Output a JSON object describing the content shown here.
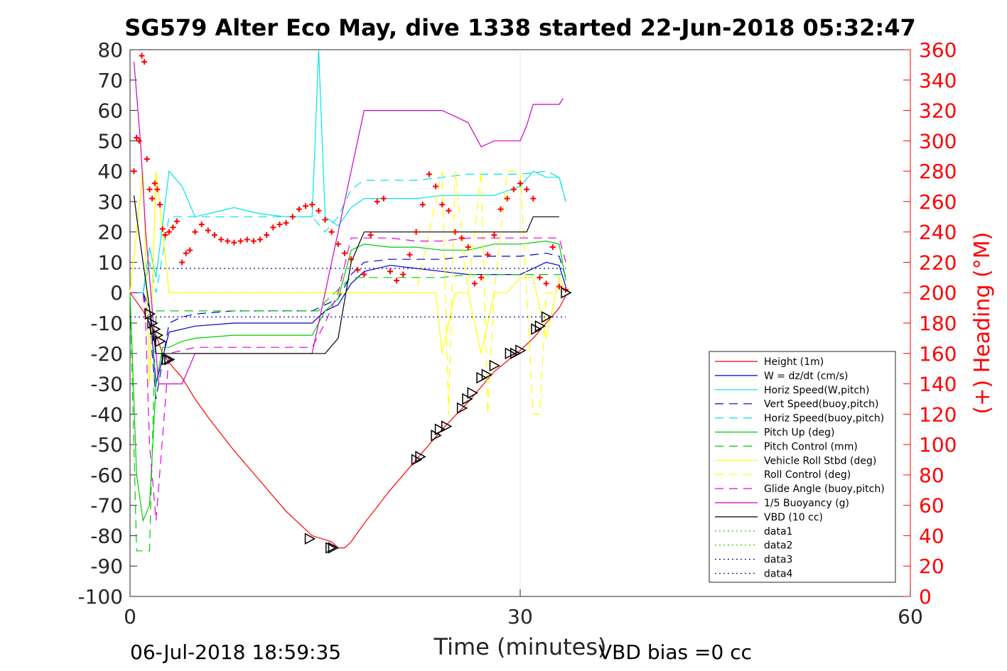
{
  "chart_data": {
    "type": "line",
    "title": "SG579 Alter Eco May, dive 1338 started 22-Jun-2018 05:32:47",
    "xlabel": "Time (minutes)",
    "ylabel": "",
    "y2label": "(+) Heading (°M)",
    "xlim": [
      0,
      60
    ],
    "ylim": [
      -100,
      80
    ],
    "y2lim": [
      0,
      360
    ],
    "xticks": [
      0,
      30,
      60
    ],
    "yticks": [
      80,
      70,
      60,
      50,
      40,
      30,
      20,
      10,
      0,
      -10,
      -20,
      -30,
      -40,
      -50,
      -60,
      -70,
      -80,
      -90,
      -100
    ],
    "y2ticks": [
      360,
      340,
      320,
      300,
      280,
      260,
      240,
      220,
      200,
      180,
      160,
      140,
      120,
      100,
      80,
      60,
      40,
      20,
      0
    ],
    "grid": "vertical at 30",
    "legend_position": "right-inside",
    "footer_left": "06-Jul-2018 18:59:35",
    "footer_right": "VBD bias =0 cc",
    "colors": {
      "height": "#ff0000",
      "w": "#0000cc",
      "horiz": "#00e5e5",
      "pitch": "#00cc00",
      "roll": "#ffff00",
      "glide": "#e000e0",
      "buoy": "#cc00cc",
      "vbd": "#000000",
      "heading": "#ff0000",
      "axis": "#262626",
      "axis_right": "#ff0000"
    },
    "series": [
      {
        "name": "Height (1m)",
        "color": "#ff0000",
        "dash": "solid",
        "x": [
          0,
          1,
          2,
          2.5,
          3,
          4,
          5,
          6,
          8,
          10,
          12,
          14,
          15.5,
          16,
          16.5,
          17,
          18,
          20,
          22,
          24,
          26,
          28,
          30,
          31,
          32,
          33,
          33.5
        ],
        "y": [
          0,
          -6,
          -14,
          -20,
          -23,
          -28,
          -35,
          -41,
          -52,
          -62,
          -72,
          -80,
          -82,
          -84,
          -84,
          -82,
          -76,
          -65,
          -55,
          -45,
          -36,
          -26,
          -19,
          -15,
          -10,
          -5,
          -1
        ]
      },
      {
        "name": "W = dz/dt (cm/s)",
        "color": "#0000cc",
        "dash": "solid",
        "x": [
          0,
          1,
          1.5,
          2,
          3,
          4,
          5,
          8,
          10,
          12,
          14,
          15,
          16,
          17,
          18,
          20,
          22,
          24,
          26,
          28,
          30,
          31,
          32,
          33,
          33.5
        ],
        "y": [
          0,
          0,
          -5,
          -30,
          -13,
          -12,
          -11,
          -10,
          -10,
          -10,
          -10,
          -6,
          -4,
          3,
          7,
          9,
          8,
          7,
          6,
          6,
          6,
          8,
          10,
          9,
          2
        ]
      },
      {
        "name": "Horiz Speed(W,pitch)",
        "color": "#00e5e5",
        "dash": "solid",
        "x": [
          0,
          1,
          1.5,
          2,
          3,
          4,
          5,
          8,
          10,
          12,
          14,
          14.5,
          15,
          16,
          17,
          18,
          20,
          22,
          24,
          26,
          28,
          30,
          31,
          32,
          33,
          33.5
        ],
        "y": [
          0,
          0,
          15,
          5,
          40,
          35,
          25,
          28,
          26,
          25,
          25,
          80,
          25,
          22,
          28,
          31,
          31,
          31,
          32,
          32,
          32,
          35,
          40,
          38,
          38,
          30
        ]
      },
      {
        "name": "Vert Speed(buoy,pitch)",
        "color": "#0000cc",
        "dash": "dash",
        "x": [
          0,
          1,
          1.5,
          2,
          3,
          4,
          5,
          8,
          10,
          12,
          14,
          15,
          16,
          17,
          18,
          20,
          22,
          24,
          26,
          28,
          30,
          32,
          33,
          33.5
        ],
        "y": [
          0,
          0,
          -10,
          -35,
          -10,
          -8,
          -7,
          -6,
          -6,
          -6,
          -6,
          -4,
          -2,
          6,
          10,
          11,
          11,
          11,
          12,
          12,
          12,
          13,
          12,
          5
        ]
      },
      {
        "name": "Horiz Speed(buoy,pitch)",
        "color": "#00e5e5",
        "dash": "dash",
        "x": [
          0,
          1,
          1.5,
          2,
          3,
          4,
          5,
          8,
          10,
          12,
          14,
          15,
          16,
          17,
          18,
          20,
          22,
          24,
          26,
          28,
          30,
          32,
          33,
          33.5
        ],
        "y": [
          0,
          0,
          10,
          0,
          25,
          25,
          25,
          25,
          25,
          25,
          25,
          20,
          25,
          34,
          37,
          37,
          37,
          38,
          39,
          39,
          39,
          40,
          38,
          30
        ]
      },
      {
        "name": "Pitch Up (deg)",
        "color": "#00cc00",
        "dash": "solid",
        "x": [
          0,
          0.5,
          1,
          1.5,
          2,
          2.5,
          3,
          4,
          5,
          8,
          10,
          12,
          14,
          15,
          16,
          17,
          18,
          20,
          22,
          24,
          26,
          28,
          30,
          32,
          33,
          33.5
        ],
        "y": [
          0,
          -60,
          -75,
          -70,
          -30,
          -18,
          -18,
          -16,
          -15,
          -14,
          -14,
          -14,
          -14,
          -6,
          -2,
          14,
          16,
          15,
          15,
          14,
          14,
          16,
          16,
          17,
          16,
          4
        ]
      },
      {
        "name": "Pitch Control (mm)",
        "color": "#00cc00",
        "dash": "dash",
        "x": [
          0,
          0.5,
          1,
          1.5,
          2,
          3,
          4,
          8,
          12,
          14.5,
          15,
          16,
          17,
          18,
          20,
          22,
          24,
          26,
          28,
          30,
          32,
          33,
          33.5
        ],
        "y": [
          0,
          -85,
          -85,
          -85,
          -6,
          -6,
          -6,
          -6,
          -6,
          -6,
          -3,
          1,
          5,
          5,
          5,
          5,
          5,
          6,
          6,
          6,
          6,
          6,
          6
        ]
      },
      {
        "name": "Vehicle Roll Stbd (deg)",
        "color": "#ffff00",
        "dash": "solid",
        "x": [
          0,
          0.5,
          1,
          1.5,
          2,
          2.5,
          3,
          4,
          8,
          12,
          14,
          15,
          16,
          17,
          18,
          20,
          22,
          23.5,
          24,
          25,
          26,
          27,
          28,
          29,
          30,
          31,
          32,
          33,
          33.5
        ],
        "y": [
          0,
          20,
          40,
          -30,
          40,
          20,
          0,
          0,
          0,
          0,
          0,
          0,
          0,
          0,
          0,
          0,
          0,
          0,
          -20,
          0,
          0,
          -20,
          0,
          0,
          5,
          5,
          -15,
          5,
          0
        ]
      },
      {
        "name": "Roll Control (deg)",
        "color": "#ffff00",
        "dash": "dash",
        "x": [
          0,
          1,
          1.5,
          2,
          3,
          4,
          8,
          12,
          16,
          20,
          22,
          24,
          24.5,
          25,
          26,
          27,
          27.5,
          28,
          29,
          30,
          31,
          31.5,
          32,
          33
        ],
        "y": [
          0,
          40,
          -30,
          40,
          0,
          0,
          0,
          0,
          0,
          0,
          0,
          40,
          -40,
          40,
          0,
          40,
          -40,
          0,
          40,
          40,
          -40,
          -40,
          0,
          0
        ]
      },
      {
        "name": "Glide Angle (buoy,pitch)",
        "color": "#e000e0",
        "dash": "dash",
        "x": [
          0,
          1,
          1.2,
          1.5,
          2,
          3,
          4,
          5,
          8,
          10,
          12,
          14,
          15,
          16,
          17,
          18,
          20,
          22,
          24,
          26,
          28,
          30,
          32,
          33,
          33.5
        ],
        "y": [
          0,
          0,
          -10,
          -50,
          -75,
          -20,
          -19,
          -18,
          -18,
          -18,
          -18,
          -18,
          -10,
          0,
          18,
          18,
          18,
          17,
          17,
          18,
          18,
          18,
          18,
          18,
          10
        ]
      },
      {
        "name": "1/5 Buoyancy (g)",
        "color": "#cc00cc",
        "dash": "solid",
        "x": [
          0.3,
          0.8,
          1.2,
          1.8,
          2.2,
          3,
          3.5,
          4,
          4.5,
          5,
          8,
          12,
          14,
          15,
          16,
          17,
          18,
          20,
          22,
          24,
          25,
          26,
          27,
          28,
          29,
          30,
          30.5,
          31,
          32,
          33,
          33.3
        ],
        "y": [
          76,
          50,
          20,
          -10,
          -30,
          -30,
          -30,
          -30,
          -25,
          -20,
          -20,
          -20,
          -20,
          0,
          20,
          40,
          60,
          60,
          60,
          60,
          58,
          56,
          48,
          50,
          50,
          50,
          55,
          62,
          62,
          62,
          64
        ]
      },
      {
        "name": "VBD (10 cc)",
        "color": "#000000",
        "dash": "solid",
        "x": [
          0.3,
          0.6,
          1,
          1.5,
          2,
          3,
          4,
          8,
          12,
          14,
          15,
          16,
          17,
          18,
          20,
          22,
          24,
          26,
          28,
          30,
          30.5,
          31,
          32,
          33
        ],
        "y": [
          32,
          22,
          10,
          -5,
          -20,
          -20,
          -20,
          -20,
          -20,
          -20,
          -20,
          -15,
          10,
          20,
          20,
          20,
          20,
          20,
          20,
          20,
          20,
          25,
          25,
          25
        ]
      },
      {
        "name": "data1",
        "color": "#00cc00",
        "dash": "dot",
        "x": [],
        "y": []
      },
      {
        "name": "data2",
        "color": "#00cc00",
        "dash": "dot",
        "x": [],
        "y": []
      },
      {
        "name": "data3",
        "color": "#0000cc",
        "dash": "dot",
        "x": [
          0,
          33.5
        ],
        "y": [
          8,
          8
        ]
      },
      {
        "name": "data4",
        "color": "#0000cc",
        "dash": "dot",
        "x": [
          0,
          33.5
        ],
        "y": [
          -8,
          -8
        ]
      }
    ],
    "heading_points": {
      "name": "(+) Heading (°M)",
      "color": "#ff0000",
      "x": [
        0.3,
        0.5,
        0.7,
        0.9,
        1.1,
        1.3,
        1.5,
        1.7,
        1.9,
        2.1,
        2.3,
        2.5,
        2.7,
        3,
        3.3,
        3.6,
        4,
        4.3,
        4.6,
        5,
        5.5,
        6,
        6.5,
        7,
        7.5,
        8,
        8.5,
        9,
        9.5,
        10,
        10.5,
        11,
        11.5,
        12,
        12.5,
        13,
        13.5,
        14,
        14.5,
        15,
        15.5,
        16,
        16.5,
        17,
        17.5,
        18,
        18.5,
        19,
        19.5,
        20,
        20.5,
        21,
        21.5,
        22,
        22.5,
        23,
        23.5,
        24,
        24.5,
        25,
        25.5,
        26,
        26.5,
        27,
        27.5,
        28,
        28.5,
        29,
        29.5,
        30,
        30.5,
        31,
        31.5,
        32,
        32.5,
        33,
        33.5
      ],
      "y": [
        280,
        302,
        300,
        356,
        352,
        288,
        268,
        262,
        272,
        268,
        258,
        242,
        238,
        240,
        243,
        247,
        220,
        226,
        228,
        240,
        245,
        241,
        238,
        235,
        234,
        233,
        234,
        235,
        234,
        235,
        238,
        243,
        245,
        246,
        250,
        255,
        257,
        258,
        254,
        248,
        240,
        232,
        226,
        222,
        215,
        212,
        238,
        260,
        262,
        214,
        208,
        212,
        225,
        240,
        258,
        278,
        270,
        258,
        254,
        240,
        236,
        230,
        206,
        210,
        225,
        238,
        255,
        262,
        268,
        272,
        268,
        262,
        210,
        206,
        230,
        204,
        202
      ]
    },
    "markers": {
      "x": [
        1.5,
        1.7,
        1.9,
        2.1,
        2.3,
        2.8,
        3,
        13.8,
        15.4,
        15.6,
        22,
        22.3,
        23.5,
        23.8,
        24.3,
        25.5,
        25.9,
        26.3,
        27,
        27.4,
        28,
        29.2,
        29.6,
        30,
        31.2,
        31.5,
        32,
        33.5
      ],
      "y": [
        -7,
        -10,
        -12,
        -14,
        -16,
        -22,
        -22,
        -81,
        -84,
        -84,
        -55,
        -54,
        -47,
        -45,
        -44,
        -38,
        -35,
        -33,
        -28,
        -27,
        -24,
        -20,
        -20,
        -19,
        -12,
        -11,
        -8,
        0
      ]
    }
  },
  "legend": {
    "entries": [
      {
        "label": "Height (1m)",
        "color": "#ff0000",
        "dash": "solid"
      },
      {
        "label": "W = dz/dt (cm/s)",
        "color": "#0000cc",
        "dash": "solid"
      },
      {
        "label": "Horiz Speed(W,pitch)",
        "color": "#00e5e5",
        "dash": "solid"
      },
      {
        "label": "Vert Speed(buoy,pitch)",
        "color": "#0000cc",
        "dash": "dash"
      },
      {
        "label": "Horiz Speed(buoy,pitch)",
        "color": "#00e5e5",
        "dash": "dash"
      },
      {
        "label": "Pitch Up (deg)",
        "color": "#00cc00",
        "dash": "solid"
      },
      {
        "label": "Pitch Control (mm)",
        "color": "#00cc00",
        "dash": "dash"
      },
      {
        "label": "Vehicle Roll Stbd (deg)",
        "color": "#ffff00",
        "dash": "solid"
      },
      {
        "label": "Roll Control (deg)",
        "color": "#ffff00",
        "dash": "dash"
      },
      {
        "label": "Glide Angle (buoy,pitch)",
        "color": "#e000e0",
        "dash": "dash"
      },
      {
        "label": "1/5 Buoyancy (g)",
        "color": "#cc00cc",
        "dash": "solid"
      },
      {
        "label": "VBD (10 cc)",
        "color": "#000000",
        "dash": "solid"
      },
      {
        "label": "data1",
        "color": "#00cc00",
        "dash": "dot"
      },
      {
        "label": "data2",
        "color": "#00cc00",
        "dash": "dot"
      },
      {
        "label": "data3",
        "color": "#0000cc",
        "dash": "dot"
      },
      {
        "label": "data4",
        "color": "#0000cc",
        "dash": "dot"
      }
    ]
  }
}
